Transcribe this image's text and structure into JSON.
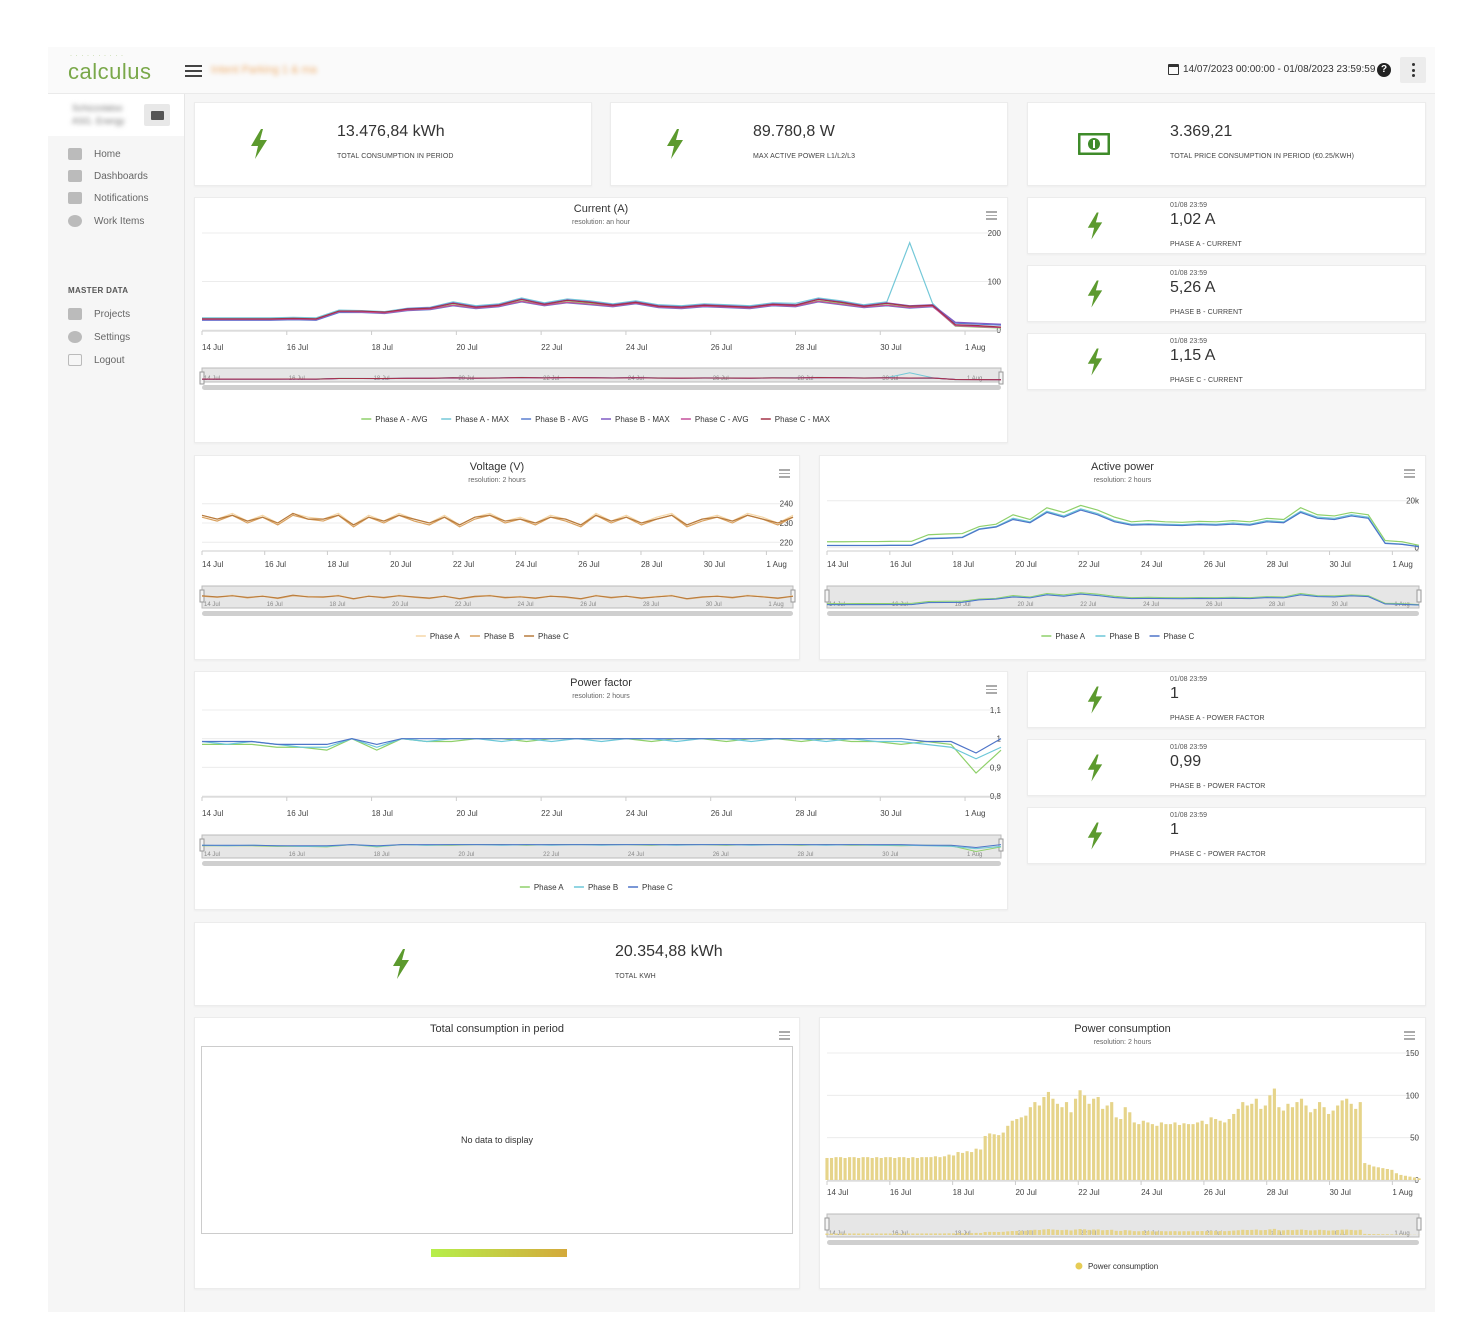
{
  "app": {
    "logo": "calculus",
    "project": "Intent Parking 1 & ma",
    "date_range": "14/07/2023 00:00:00 - 01/08/2023 23:59:59",
    "help": "?"
  },
  "sidebar": {
    "user": "Schizzolatso ASG. Energy",
    "items": [
      {
        "label": "Home",
        "icon": "home-icon"
      },
      {
        "label": "Dashboards",
        "icon": "dashboard-icon"
      },
      {
        "label": "Notifications",
        "icon": "bell-icon"
      },
      {
        "label": "Work Items",
        "icon": "check-circle-icon"
      }
    ],
    "section": "MASTER DATA",
    "master_items": [
      {
        "label": "Projects",
        "icon": "folder-icon"
      },
      {
        "label": "Settings",
        "icon": "gear-icon"
      },
      {
        "label": "Logout",
        "icon": "logout-icon"
      }
    ]
  },
  "kpis": {
    "total_consumption": {
      "value": "13.476,84 kWh",
      "label": "TOTAL CONSUMPTION IN PERIOD"
    },
    "max_power": {
      "value": "89.780,8 W",
      "label": "MAX ACTIVE POWER L1/L2/L3"
    },
    "total_price": {
      "value": "3.369,21",
      "label": "TOTAL PRICE CONSUMPTION IN PERIOD (€0.25/KWH)"
    },
    "total_kwh": {
      "value": "20.354,88 kWh",
      "label": "TOTAL KWH"
    }
  },
  "phase_current": [
    {
      "ts": "01/08 23:59",
      "value": "1,02 A",
      "label": "PHASE A - CURRENT"
    },
    {
      "ts": "01/08 23:59",
      "value": "5,26 A",
      "label": "PHASE B - CURRENT"
    },
    {
      "ts": "01/08 23:59",
      "value": "1,15 A",
      "label": "PHASE C - CURRENT"
    }
  ],
  "phase_pf": [
    {
      "ts": "01/08 23:59",
      "value": "1",
      "label": "PHASE A - POWER FACTOR"
    },
    {
      "ts": "01/08 23:59",
      "value": "0,99",
      "label": "PHASE B - POWER FACTOR"
    },
    {
      "ts": "01/08 23:59",
      "value": "1",
      "label": "PHASE C - POWER FACTOR"
    }
  ],
  "charts": {
    "current": {
      "title": "Current (A)",
      "subtitle": "resolution: an hour"
    },
    "voltage": {
      "title": "Voltage (V)",
      "subtitle": "resolution: 2 hours"
    },
    "active": {
      "title": "Active power",
      "subtitle": "resolution: 2 hours"
    },
    "pf": {
      "title": "Power factor",
      "subtitle": "resolution: 2 hours"
    },
    "total_consumption": {
      "title": "Total consumption in period",
      "nodata": "No data to display"
    },
    "power_consumption": {
      "title": "Power consumption",
      "subtitle": "resolution: 2 hours"
    }
  },
  "colors": {
    "accent": "#7aa84a",
    "bolt": "#5c9a2e",
    "money": "#3f8b2a"
  },
  "chart_data": [
    {
      "id": "current",
      "type": "line",
      "title": "Current (A)",
      "x_labels": [
        "14 Jul",
        "16 Jul",
        "18 Jul",
        "20 Jul",
        "22 Jul",
        "24 Jul",
        "26 Jul",
        "28 Jul",
        "30 Jul",
        "1 Aug"
      ],
      "y_ticks": [
        "200",
        "100",
        "0"
      ],
      "ylim": [
        0,
        200
      ],
      "series": [
        {
          "name": "Phase A - AVG",
          "color": "#8fd06a",
          "values": [
            24,
            24,
            24,
            24,
            25,
            24,
            40,
            38,
            36,
            42,
            44,
            52,
            47,
            50,
            60,
            52,
            58,
            55,
            50,
            56,
            48,
            46,
            50,
            48,
            46,
            52,
            50,
            60,
            55,
            48,
            52,
            47,
            50,
            8,
            6,
            4
          ]
        },
        {
          "name": "Phase A - MAX",
          "color": "#74c8d8",
          "values": [
            25,
            25,
            25,
            25,
            26,
            25,
            41,
            40,
            38,
            45,
            47,
            58,
            50,
            54,
            66,
            56,
            64,
            60,
            54,
            60,
            52,
            50,
            54,
            52,
            50,
            56,
            55,
            66,
            60,
            52,
            58,
            180,
            55,
            10,
            8,
            5
          ]
        },
        {
          "name": "Phase B - AVG",
          "color": "#5a7fd1",
          "values": [
            20,
            20,
            20,
            20,
            21,
            20,
            36,
            36,
            34,
            40,
            42,
            50,
            44,
            48,
            58,
            50,
            56,
            52,
            48,
            54,
            46,
            44,
            48,
            46,
            44,
            50,
            48,
            58,
            52,
            46,
            50,
            45,
            48,
            14,
            12,
            10
          ]
        },
        {
          "name": "Phase B - MAX",
          "color": "#7f5ac4",
          "values": [
            21,
            21,
            21,
            21,
            22,
            21,
            38,
            38,
            36,
            44,
            46,
            56,
            48,
            52,
            64,
            54,
            62,
            58,
            52,
            58,
            50,
            48,
            52,
            50,
            48,
            54,
            52,
            64,
            58,
            50,
            56,
            50,
            52,
            16,
            14,
            12
          ]
        },
        {
          "name": "Phase C - AVG",
          "color": "#c44f9b",
          "values": [
            22,
            22,
            22,
            22,
            23,
            22,
            38,
            37,
            35,
            41,
            43,
            51,
            45,
            49,
            59,
            51,
            57,
            53,
            49,
            55,
            47,
            45,
            49,
            47,
            45,
            51,
            49,
            59,
            53,
            47,
            51,
            46,
            49,
            9,
            7,
            5
          ]
        },
        {
          "name": "Phase C - MAX",
          "color": "#a43248",
          "values": [
            23,
            23,
            23,
            23,
            24,
            23,
            39,
            39,
            37,
            43,
            45,
            55,
            47,
            51,
            63,
            53,
            61,
            57,
            51,
            57,
            49,
            47,
            51,
            49,
            47,
            53,
            51,
            63,
            57,
            49,
            55,
            49,
            51,
            11,
            9,
            6
          ]
        }
      ]
    },
    {
      "id": "voltage",
      "type": "line",
      "title": "Voltage (V)",
      "x_labels": [
        "14 Jul",
        "16 Jul",
        "18 Jul",
        "20 Jul",
        "22 Jul",
        "24 Jul",
        "26 Jul",
        "28 Jul",
        "30 Jul",
        "1 Aug"
      ],
      "y_ticks": [
        "240",
        "230",
        "220"
      ],
      "ylim": [
        216,
        244
      ],
      "series": [
        {
          "name": "Phase A",
          "color": "#f5d7a8",
          "values": [
            234,
            232,
            235,
            231,
            234,
            230,
            235,
            233,
            232,
            235,
            229,
            234,
            231,
            235,
            232,
            230,
            234,
            229,
            233,
            235,
            231,
            233,
            230,
            234,
            232,
            229,
            235,
            231,
            234,
            230,
            233,
            235,
            229,
            232,
            234,
            231,
            235,
            233,
            230,
            234
          ]
        },
        {
          "name": "Phase B",
          "color": "#d9a15f",
          "values": [
            233,
            231,
            234,
            230,
            233,
            229,
            234,
            232,
            231,
            234,
            228,
            233,
            230,
            234,
            231,
            229,
            233,
            228,
            232,
            234,
            230,
            232,
            229,
            233,
            231,
            228,
            234,
            230,
            233,
            229,
            232,
            234,
            228,
            231,
            233,
            230,
            234,
            232,
            229,
            233
          ]
        },
        {
          "name": "Phase C",
          "color": "#b77a3d",
          "values": [
            234,
            232,
            234,
            231,
            233,
            230,
            235,
            232,
            232,
            234,
            229,
            233,
            231,
            234,
            232,
            230,
            233,
            229,
            233,
            234,
            231,
            232,
            230,
            233,
            232,
            229,
            234,
            231,
            233,
            230,
            232,
            234,
            229,
            232,
            233,
            231,
            234,
            232,
            230,
            233
          ]
        }
      ]
    },
    {
      "id": "active",
      "type": "line",
      "title": "Active power",
      "x_labels": [
        "14 Jul",
        "16 Jul",
        "18 Jul",
        "20 Jul",
        "22 Jul",
        "24 Jul",
        "26 Jul",
        "28 Jul",
        "30 Jul",
        "1 Aug"
      ],
      "y_ticks": [
        "20k",
        "0"
      ],
      "ylim": [
        -1000,
        22000
      ],
      "series": [
        {
          "name": "Phase A",
          "color": "#8fd06a",
          "values": [
            2500,
            2500,
            2600,
            2600,
            2700,
            2700,
            5500,
            5800,
            6000,
            9000,
            10000,
            14000,
            12000,
            17000,
            15000,
            18000,
            16000,
            13000,
            11000,
            11500,
            11000,
            10800,
            11200,
            11000,
            11500,
            11000,
            12500,
            12000,
            17000,
            14000,
            13500,
            15000,
            14000,
            3000,
            2500,
            1000
          ]
        },
        {
          "name": "Phase B",
          "color": "#6cc7d8",
          "values": [
            1000,
            1000,
            1000,
            1000,
            1100,
            1100,
            4000,
            4200,
            4500,
            8000,
            9000,
            12500,
            11000,
            15500,
            13500,
            16500,
            14500,
            11500,
            10000,
            10200,
            10000,
            9800,
            10200,
            10000,
            10500,
            10000,
            11500,
            11000,
            15500,
            13000,
            12500,
            14000,
            13000,
            2000,
            1500,
            500
          ]
        },
        {
          "name": "Phase C",
          "color": "#4e74c8",
          "values": [
            900,
            900,
            900,
            900,
            950,
            950,
            3800,
            4000,
            4300,
            7800,
            8800,
            12000,
            10600,
            15000,
            13000,
            16000,
            14000,
            11000,
            9600,
            9800,
            9600,
            9400,
            9800,
            9600,
            10000,
            9600,
            11000,
            10600,
            15000,
            12500,
            12000,
            13500,
            12500,
            1800,
            1400,
            400
          ]
        }
      ]
    },
    {
      "id": "pf",
      "type": "line",
      "title": "Power factor",
      "x_labels": [
        "14 Jul",
        "16 Jul",
        "18 Jul",
        "20 Jul",
        "22 Jul",
        "24 Jul",
        "26 Jul",
        "28 Jul",
        "30 Jul",
        "1 Aug"
      ],
      "y_ticks": [
        "1,1",
        "1",
        "0,9",
        "0,8"
      ],
      "ylim": [
        0.8,
        1.1
      ],
      "series": [
        {
          "name": "Phase A",
          "color": "#8fd06a",
          "values": [
            0.98,
            0.98,
            0.98,
            0.97,
            0.97,
            0.96,
            1.0,
            0.96,
            1.0,
            0.99,
            0.99,
            1.0,
            1.0,
            0.99,
            1.0,
            1.0,
            1.0,
            1.0,
            0.99,
            1.0,
            1.0,
            0.99,
            1.0,
            1.0,
            0.99,
            1.0,
            0.99,
            0.99,
            0.98,
            0.99,
            0.98,
            0.88,
            0.96
          ]
        },
        {
          "name": "Phase B",
          "color": "#6cc7d8",
          "values": [
            0.99,
            0.98,
            0.99,
            0.98,
            0.97,
            0.97,
            1.0,
            0.97,
            1.0,
            0.99,
            1.0,
            1.0,
            0.99,
            1.0,
            0.99,
            1.0,
            0.99,
            1.0,
            1.0,
            0.99,
            1.0,
            1.0,
            0.99,
            1.0,
            1.0,
            0.99,
            1.0,
            0.99,
            0.99,
            0.98,
            0.97,
            0.93,
            0.97
          ]
        },
        {
          "name": "Phase C",
          "color": "#4e74c8",
          "values": [
            0.99,
            0.99,
            0.99,
            0.98,
            0.98,
            0.98,
            1.0,
            0.98,
            1.0,
            1.0,
            1.0,
            1.0,
            1.0,
            1.0,
            1.0,
            1.0,
            1.0,
            1.0,
            1.0,
            1.0,
            1.0,
            1.0,
            1.0,
            1.0,
            1.0,
            1.0,
            1.0,
            1.0,
            1.0,
            0.99,
            0.99,
            0.95,
            1.0
          ]
        }
      ]
    },
    {
      "id": "power_consumption",
      "type": "bar",
      "title": "Power consumption",
      "x_labels": [
        "14 Jul",
        "16 Jul",
        "18 Jul",
        "20 Jul",
        "22 Jul",
        "24 Jul",
        "26 Jul",
        "28 Jul",
        "30 Jul",
        "1 Aug"
      ],
      "y_ticks": [
        "150",
        "100",
        "50",
        "0"
      ],
      "ylim": [
        0,
        150
      ],
      "series": [
        {
          "name": "Power consumption",
          "color": "#e6d48a",
          "values": [
            26,
            26,
            27,
            27,
            26,
            27,
            27,
            26,
            27,
            27,
            26,
            27,
            26,
            27,
            27,
            26,
            27,
            27,
            26,
            27,
            26,
            27,
            27,
            27,
            28,
            27,
            28,
            30,
            29,
            33,
            32,
            34,
            33,
            37,
            36,
            52,
            55,
            54,
            53,
            56,
            64,
            70,
            72,
            74,
            76,
            86,
            92,
            88,
            98,
            104,
            96,
            90,
            86,
            92,
            80,
            96,
            106,
            100,
            90,
            96,
            98,
            84,
            88,
            92,
            74,
            72,
            86,
            80,
            68,
            66,
            70,
            68,
            66,
            64,
            68,
            66,
            66,
            68,
            65,
            67,
            66,
            66,
            68,
            70,
            66,
            74,
            72,
            70,
            68,
            72,
            78,
            84,
            92,
            88,
            90,
            96,
            84,
            88,
            100,
            108,
            86,
            82,
            90,
            86,
            92,
            96,
            88,
            80,
            84,
            92,
            86,
            78,
            82,
            88,
            94,
            96,
            90,
            84,
            92,
            20,
            18,
            16,
            15,
            14,
            13,
            12,
            8,
            6,
            5,
            4,
            3,
            2
          ]
        }
      ]
    }
  ]
}
